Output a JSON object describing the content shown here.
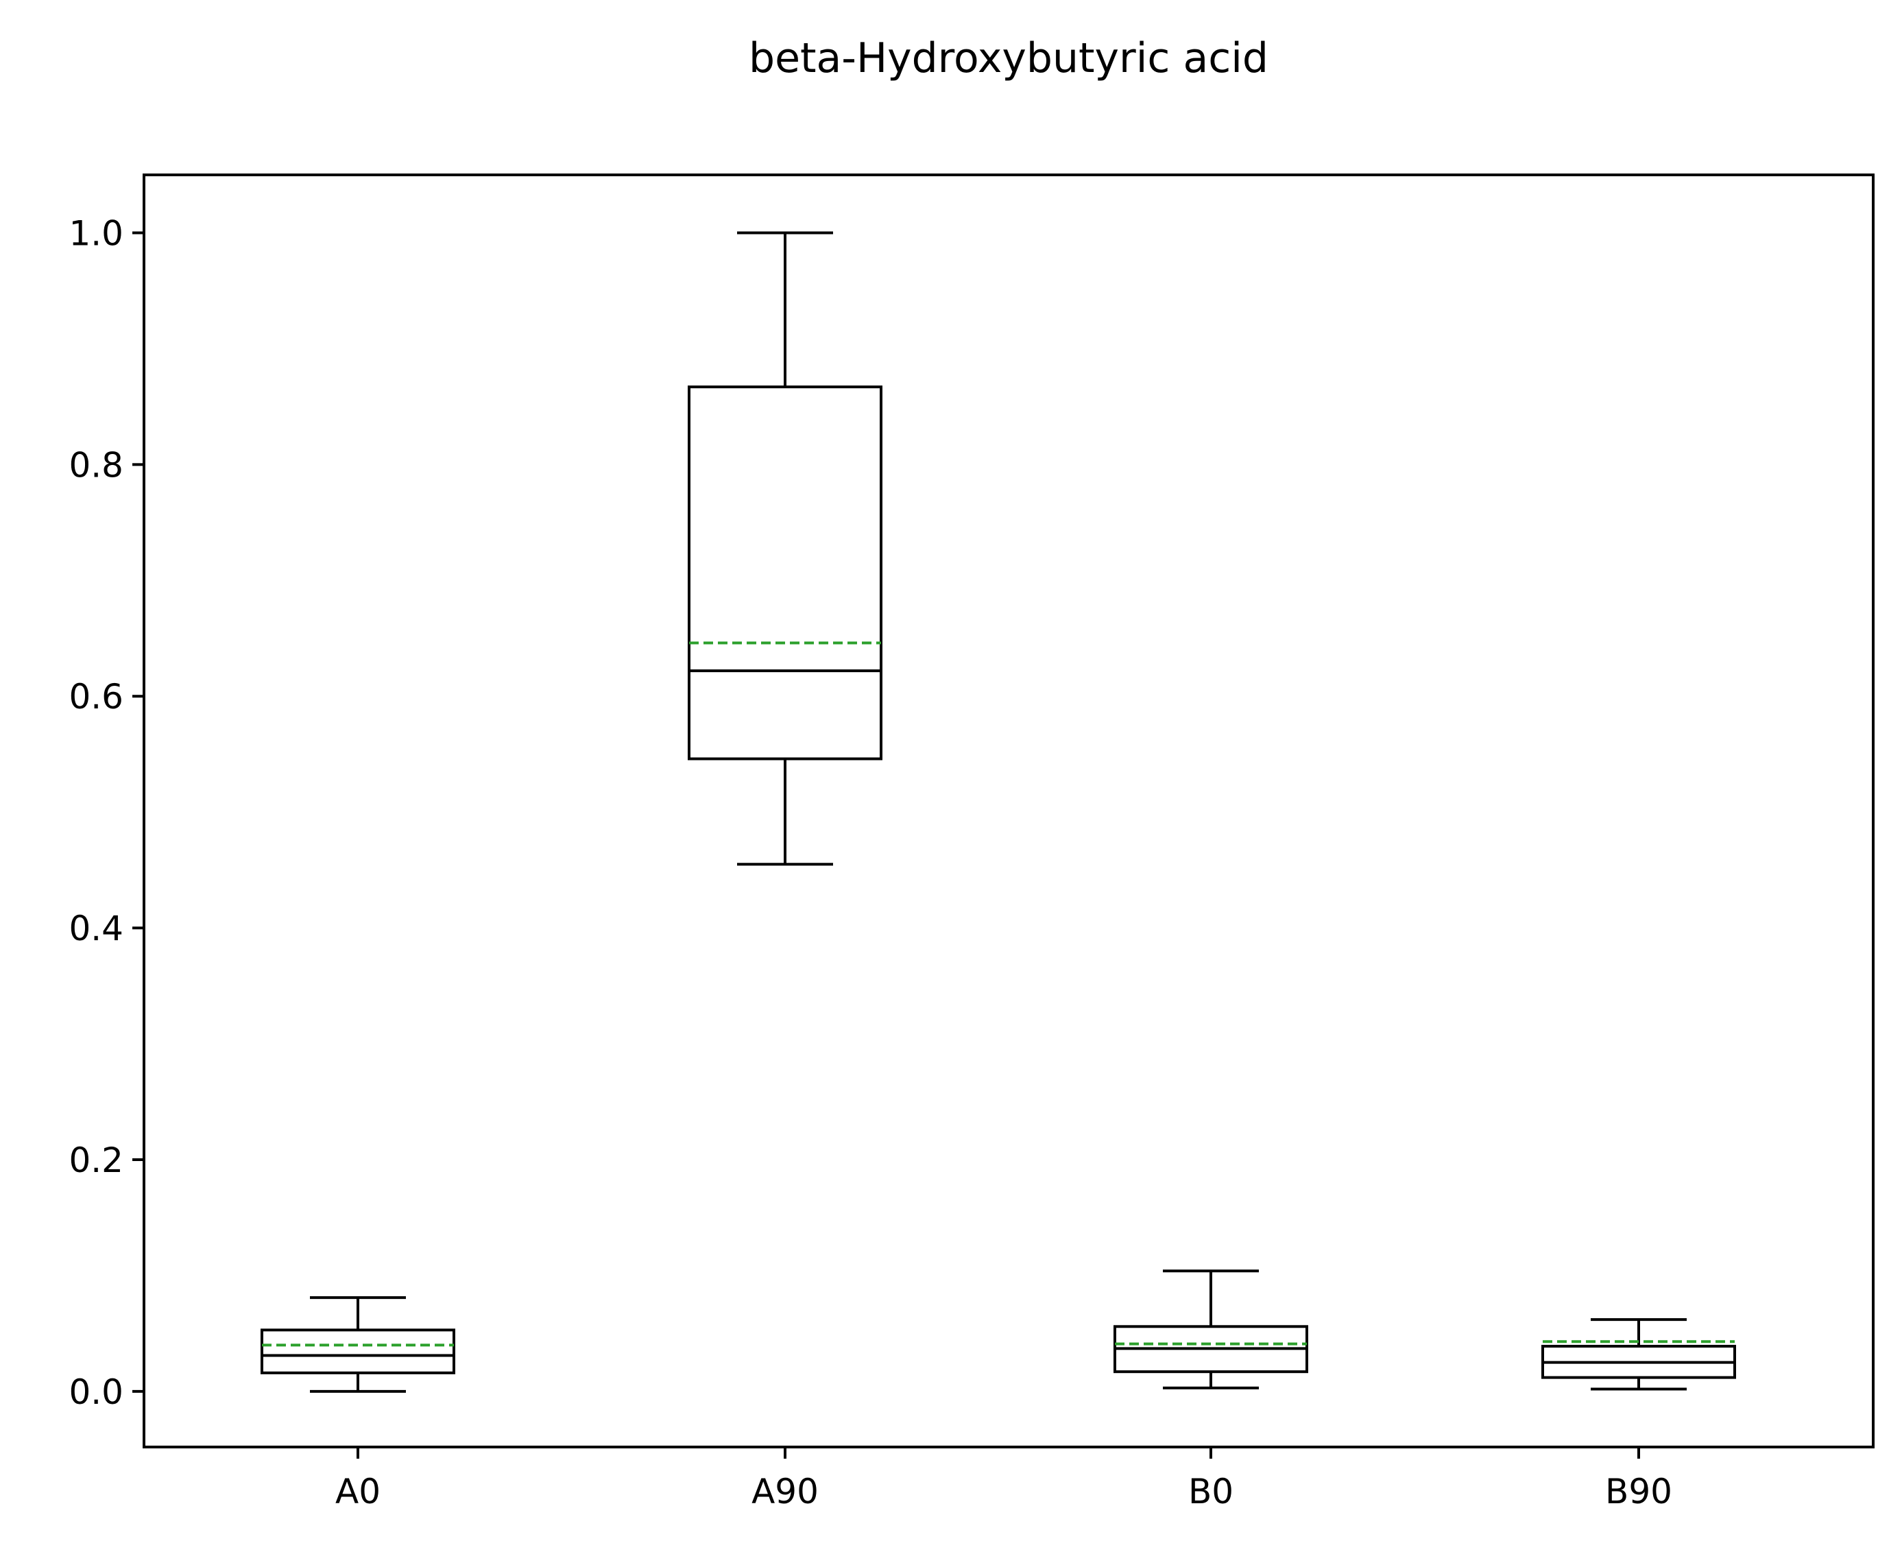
{
  "chart_data": {
    "type": "box",
    "title": "beta-Hydroxybutyric acid",
    "xlabel": "",
    "ylabel": "",
    "ylim": [
      -0.048,
      1.05
    ],
    "yticks": [
      0.0,
      0.2,
      0.4,
      0.6,
      0.8,
      1.0
    ],
    "ytick_labels": [
      "0.0",
      "0.2",
      "0.4",
      "0.6",
      "0.8",
      "1.0"
    ],
    "categories": [
      "A0",
      "A90",
      "B0",
      "B90"
    ],
    "boxes": [
      {
        "category": "A0",
        "whisker_low": 0.0,
        "q1": 0.016,
        "median": 0.031,
        "mean": 0.04,
        "q3": 0.053,
        "whisker_high": 0.081
      },
      {
        "category": "A90",
        "whisker_low": 0.455,
        "q1": 0.546,
        "median": 0.622,
        "mean": 0.646,
        "q3": 0.867,
        "whisker_high": 1.0
      },
      {
        "category": "B0",
        "whisker_low": 0.003,
        "q1": 0.017,
        "median": 0.037,
        "mean": 0.041,
        "q3": 0.056,
        "whisker_high": 0.104
      },
      {
        "category": "B90",
        "whisker_low": 0.002,
        "q1": 0.012,
        "median": 0.025,
        "mean": 0.043,
        "q3": 0.039,
        "whisker_high": 0.062
      }
    ],
    "grid": false,
    "colors": {
      "box": "#000000",
      "median": "#000000",
      "mean": "#2ca02c"
    }
  }
}
